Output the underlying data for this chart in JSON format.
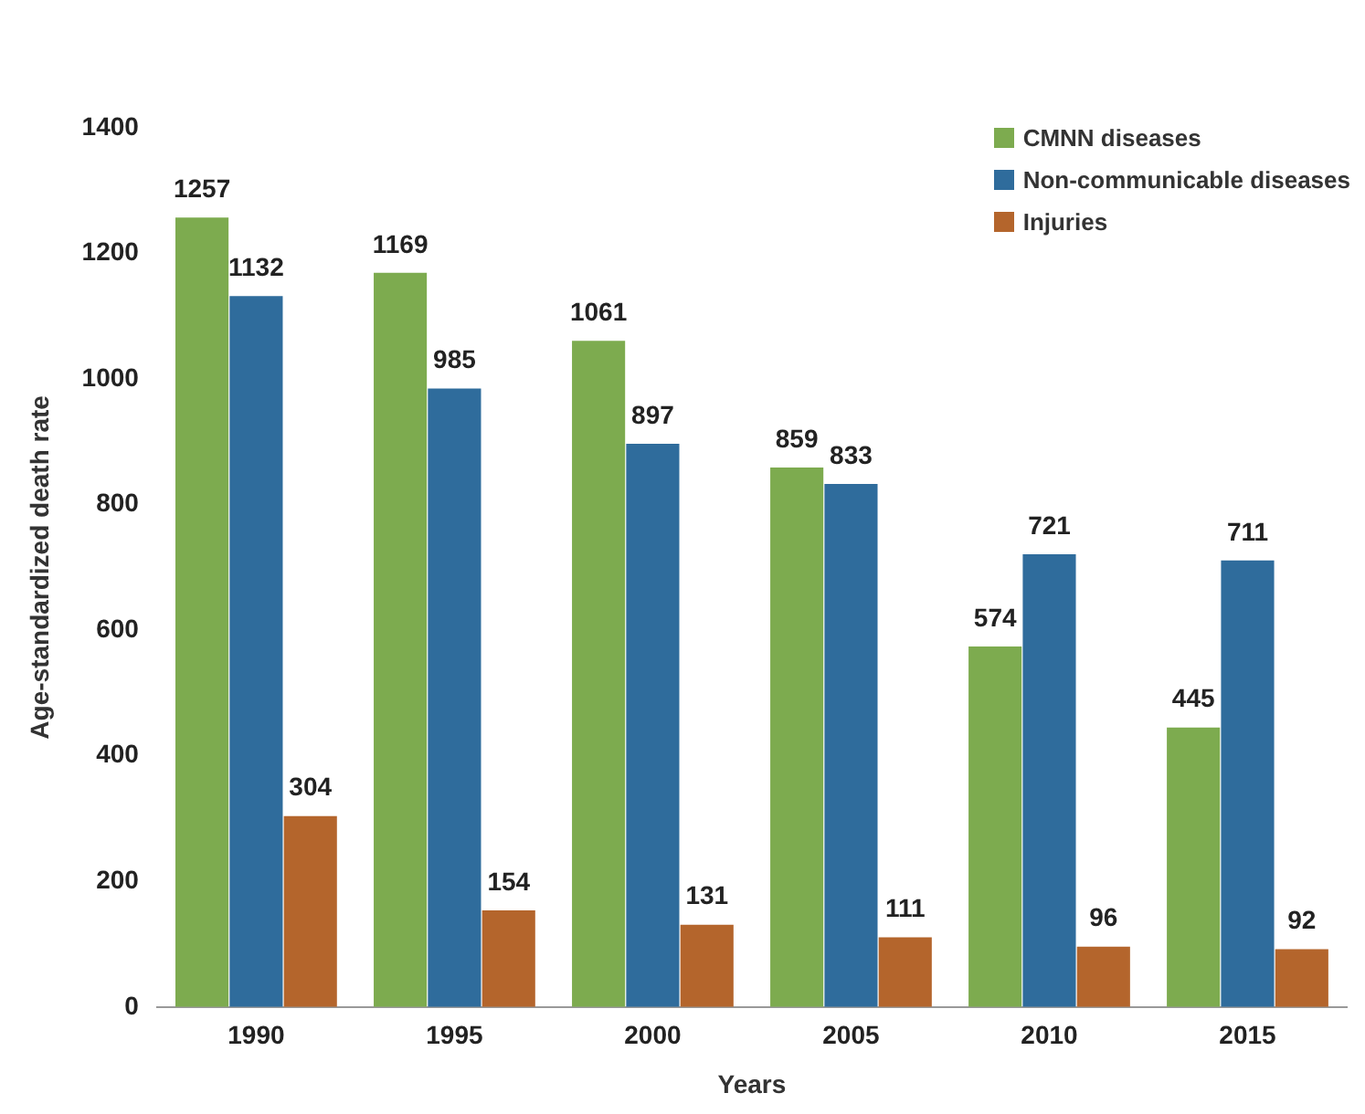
{
  "chart_data": {
    "type": "bar",
    "xlabel": "Years",
    "ylabel": "Age-standardized death rate",
    "categories": [
      "1990",
      "1995",
      "2000",
      "2005",
      "2010",
      "2015"
    ],
    "series": [
      {
        "name": "CMNN diseases",
        "color": "#7dab4f",
        "values": [
          1257,
          1169,
          1061,
          859,
          574,
          445
        ]
      },
      {
        "name": "Non-communicable diseases",
        "color": "#2f6c9c",
        "values": [
          1132,
          985,
          897,
          833,
          721,
          711
        ]
      },
      {
        "name": "Injuries",
        "color": "#b4652c",
        "values": [
          304,
          154,
          131,
          111,
          96,
          92
        ]
      }
    ],
    "ylim": [
      0,
      1400
    ],
    "yticks": [
      0,
      200,
      400,
      600,
      800,
      1000,
      1200,
      1400
    ],
    "grid": false,
    "legend": "top right",
    "data_labels": true
  }
}
